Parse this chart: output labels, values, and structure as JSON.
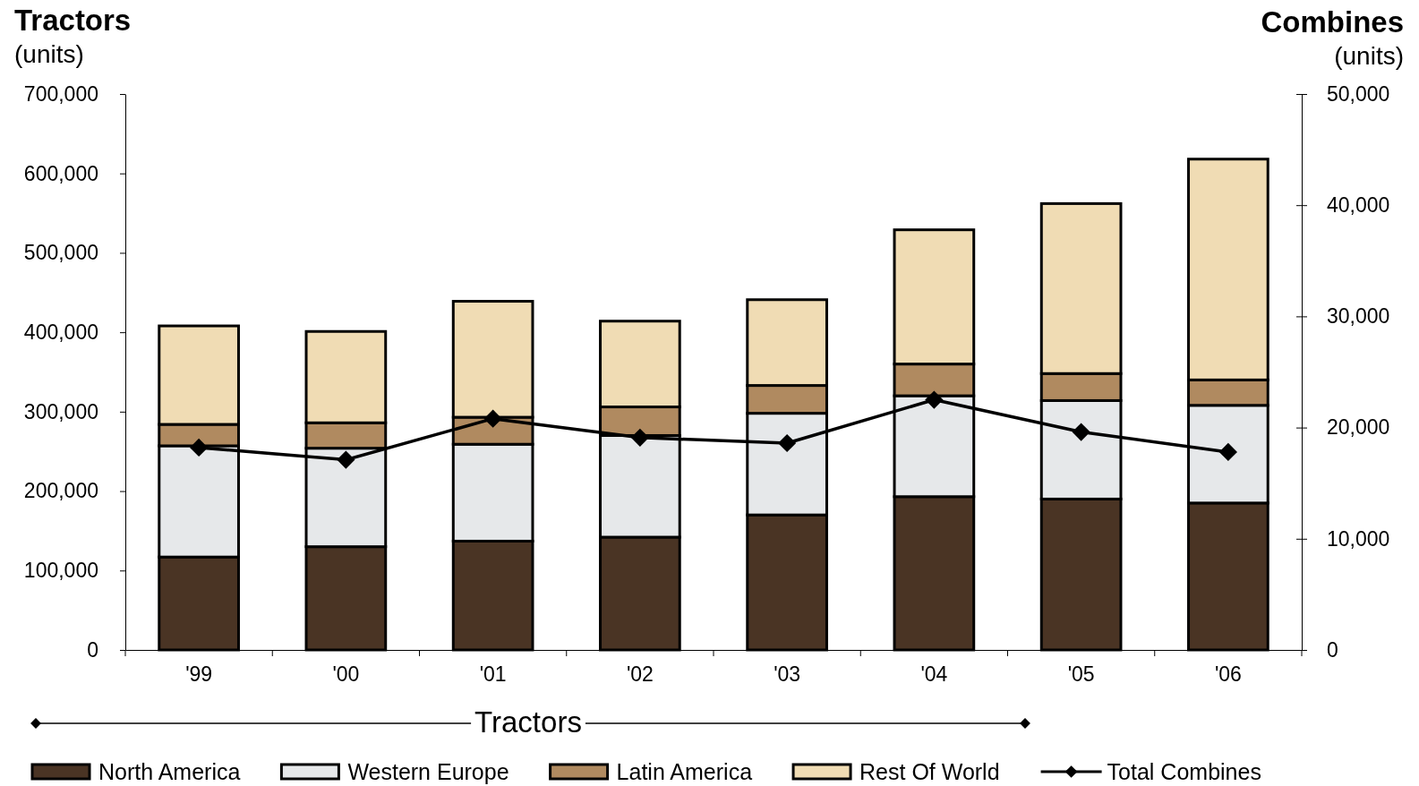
{
  "chart_data": {
    "type": "bar",
    "stacked": true,
    "ylabel": "Tractors\n(units)",
    "y2label": "Combines\n(units)",
    "categories": [
      "'99",
      "'00",
      "'01",
      "'02",
      "'03",
      "'04",
      "'05",
      "'06"
    ],
    "series": [
      {
        "name": "North America",
        "color": "#4a3424",
        "values": [
          117000,
          130000,
          137000,
          142000,
          170000,
          193000,
          190000,
          185000
        ]
      },
      {
        "name": "Western Europe",
        "color": "#e6e8ea",
        "values": [
          140000,
          124000,
          122000,
          128000,
          128000,
          127000,
          124000,
          123000
        ]
      },
      {
        "name": "Latin America",
        "color": "#b08a60",
        "values": [
          27000,
          32000,
          34000,
          36000,
          35000,
          40000,
          34000,
          32000
        ]
      },
      {
        "name": "Rest Of World",
        "color": "#f0dcb4",
        "values": [
          124000,
          115000,
          146000,
          108000,
          108000,
          169000,
          214000,
          278000
        ]
      },
      {
        "name": "Total Combines",
        "type": "line",
        "axis": "y2",
        "color": "#000000",
        "values": [
          18200,
          17100,
          20800,
          19100,
          18600,
          22500,
          19600,
          17800
        ]
      }
    ],
    "ylim": [
      0,
      700000
    ],
    "yticks": [
      {
        "value": 0,
        "label": "0"
      },
      {
        "value": 100000,
        "label": "100,000"
      },
      {
        "value": 200000,
        "label": "200,000"
      },
      {
        "value": 300000,
        "label": "300,000"
      },
      {
        "value": 400000,
        "label": "400,000"
      },
      {
        "value": 500000,
        "label": "500,000"
      },
      {
        "value": 600000,
        "label": "600,000"
      },
      {
        "value": 700000,
        "label": "700,000"
      }
    ],
    "y2lim": [
      0,
      50000
    ],
    "y2ticks": [
      {
        "value": 0,
        "label": "0"
      },
      {
        "value": 10000,
        "label": "10,000"
      },
      {
        "value": 20000,
        "label": "20,000"
      },
      {
        "value": 30000,
        "label": "30,000"
      },
      {
        "value": 40000,
        "label": "40,000"
      },
      {
        "value": 50000,
        "label": "50,000"
      }
    ],
    "marker": "diamond",
    "legend": "bottom",
    "grid": false,
    "annotations": [
      "Tractors"
    ]
  }
}
